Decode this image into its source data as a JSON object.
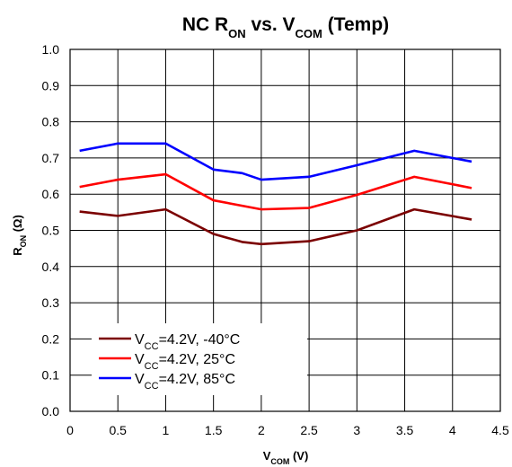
{
  "chart_data": {
    "type": "line",
    "title": {
      "parts": [
        {
          "text": "NC R",
          "sub": false
        },
        {
          "text": "ON",
          "sub": true
        },
        {
          "text": " vs. V",
          "sub": false
        },
        {
          "text": "COM",
          "sub": true
        },
        {
          "text": " (Temp)",
          "sub": false
        }
      ]
    },
    "xlabel": {
      "parts": [
        {
          "text": "V",
          "sub": false
        },
        {
          "text": "COM",
          "sub": true
        },
        {
          "text": " (V)",
          "sub": false
        }
      ]
    },
    "ylabel": {
      "parts": [
        {
          "text": "R",
          "sub": false
        },
        {
          "text": "ON",
          "sub": true
        },
        {
          "text": " (Ω)",
          "sub": false
        }
      ]
    },
    "xlim": [
      0,
      4.5
    ],
    "ylim": [
      0,
      1.0
    ],
    "x_ticks": [
      "0",
      "0.5",
      "1",
      "1.5",
      "2",
      "2.5",
      "3",
      "3.5",
      "4",
      "4.5"
    ],
    "y_ticks": [
      "0.0",
      "0.1",
      "0.2",
      "0.3",
      "0.4",
      "0.5",
      "0.6",
      "0.7",
      "0.8",
      "0.9",
      "1.0"
    ],
    "grid": true,
    "legend_position": "bottom-left",
    "series": [
      {
        "name": {
          "parts": [
            {
              "text": "V",
              "sub": false
            },
            {
              "text": "CC",
              "sub": true
            },
            {
              "text": "=4.2V, -40°C",
              "sub": false
            }
          ]
        },
        "color": "#7b0000",
        "x": [
          0.1,
          0.5,
          1.0,
          1.5,
          1.8,
          2.0,
          2.5,
          3.0,
          3.6,
          4.2
        ],
        "y": [
          0.552,
          0.54,
          0.558,
          0.49,
          0.468,
          0.462,
          0.47,
          0.5,
          0.558,
          0.53
        ]
      },
      {
        "name": {
          "parts": [
            {
              "text": "V",
              "sub": false
            },
            {
              "text": "CC",
              "sub": true
            },
            {
              "text": "=4.2V, 25°C",
              "sub": false
            }
          ]
        },
        "color": "#ff0000",
        "x": [
          0.1,
          0.5,
          1.0,
          1.5,
          2.0,
          2.5,
          3.0,
          3.6,
          4.2
        ],
        "y": [
          0.62,
          0.64,
          0.655,
          0.583,
          0.558,
          0.562,
          0.598,
          0.648,
          0.617
        ]
      },
      {
        "name": {
          "parts": [
            {
              "text": "V",
              "sub": false
            },
            {
              "text": "CC",
              "sub": true
            },
            {
              "text": "=4.2V,  85°C",
              "sub": false
            }
          ]
        },
        "color": "#0000ff",
        "x": [
          0.1,
          0.5,
          1.0,
          1.5,
          1.8,
          2.0,
          2.5,
          3.0,
          3.6,
          4.2
        ],
        "y": [
          0.72,
          0.74,
          0.74,
          0.668,
          0.658,
          0.64,
          0.648,
          0.68,
          0.72,
          0.69
        ]
      }
    ]
  }
}
